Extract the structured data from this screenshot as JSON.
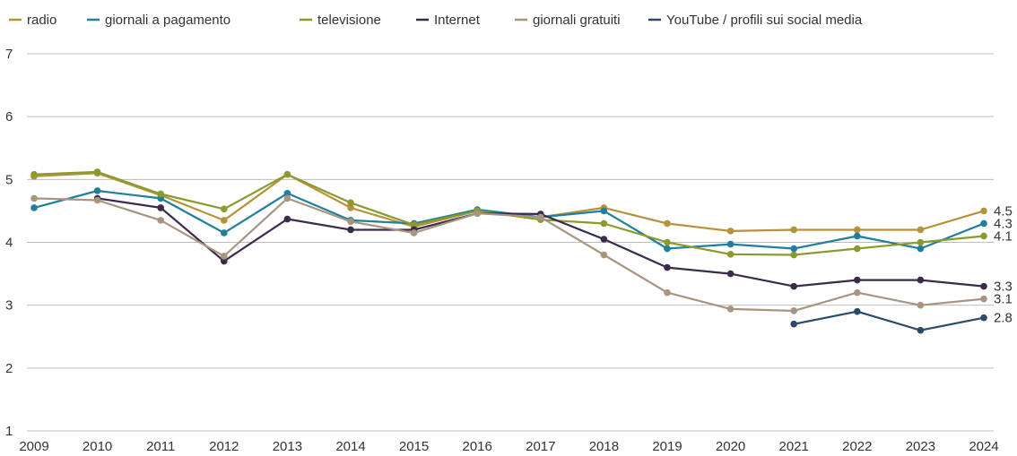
{
  "chart_data": {
    "type": "line",
    "title": "",
    "xlabel": "",
    "ylabel": "",
    "ylim": [
      1,
      7
    ],
    "yticks": [
      1,
      2,
      3,
      4,
      5,
      6,
      7
    ],
    "grid": "horizontal",
    "legend_position": "top",
    "x": [
      "2009",
      "2010",
      "2011",
      "2012",
      "2013",
      "2014",
      "2015",
      "2016",
      "2017",
      "2018",
      "2019",
      "2020",
      "2021",
      "2022",
      "2023",
      "2024"
    ],
    "series": [
      {
        "name": "radio",
        "color": "#b8923a",
        "values": [
          5.05,
          5.1,
          4.75,
          4.35,
          5.08,
          4.55,
          4.25,
          4.5,
          4.4,
          4.55,
          4.3,
          4.18,
          4.2,
          4.2,
          4.2,
          4.5
        ]
      },
      {
        "name": "giornali a pagamento",
        "color": "#1f7f9c",
        "values": [
          4.55,
          4.82,
          4.7,
          4.15,
          4.78,
          4.35,
          4.3,
          4.52,
          4.4,
          4.5,
          3.9,
          3.97,
          3.9,
          4.1,
          3.9,
          4.3
        ]
      },
      {
        "name": "televisione",
        "color": "#8a9a2c",
        "values": [
          5.08,
          5.12,
          4.77,
          4.53,
          5.08,
          4.63,
          4.28,
          4.5,
          4.36,
          4.3,
          4.0,
          3.81,
          3.8,
          3.9,
          4.0,
          4.1
        ]
      },
      {
        "name": "Internet",
        "color": "#3b2a4a",
        "values": [
          null,
          4.7,
          4.55,
          3.7,
          4.37,
          4.2,
          4.2,
          4.46,
          4.45,
          4.05,
          3.6,
          3.5,
          3.3,
          3.4,
          3.4,
          3.3
        ]
      },
      {
        "name": "giornali gratuiti",
        "color": "#a89580",
        "values": [
          4.7,
          4.67,
          4.35,
          3.78,
          4.7,
          4.33,
          4.15,
          4.46,
          4.4,
          3.8,
          3.2,
          2.94,
          2.91,
          3.2,
          3.0,
          3.1
        ]
      },
      {
        "name": "YouTube  / profili sui social media",
        "color": "#2a4a6a",
        "values": [
          null,
          null,
          null,
          null,
          null,
          null,
          null,
          null,
          null,
          null,
          null,
          null,
          2.7,
          2.9,
          2.6,
          2.8
        ]
      }
    ],
    "end_labels": [
      {
        "text": "4.5",
        "value": 4.5
      },
      {
        "text": "4.3",
        "value": 4.3
      },
      {
        "text": "4.1",
        "value": 4.1
      },
      {
        "text": "3.3",
        "value": 3.3
      },
      {
        "text": "3.1",
        "value": 3.1
      },
      {
        "text": "2.8",
        "value": 2.8
      }
    ]
  }
}
